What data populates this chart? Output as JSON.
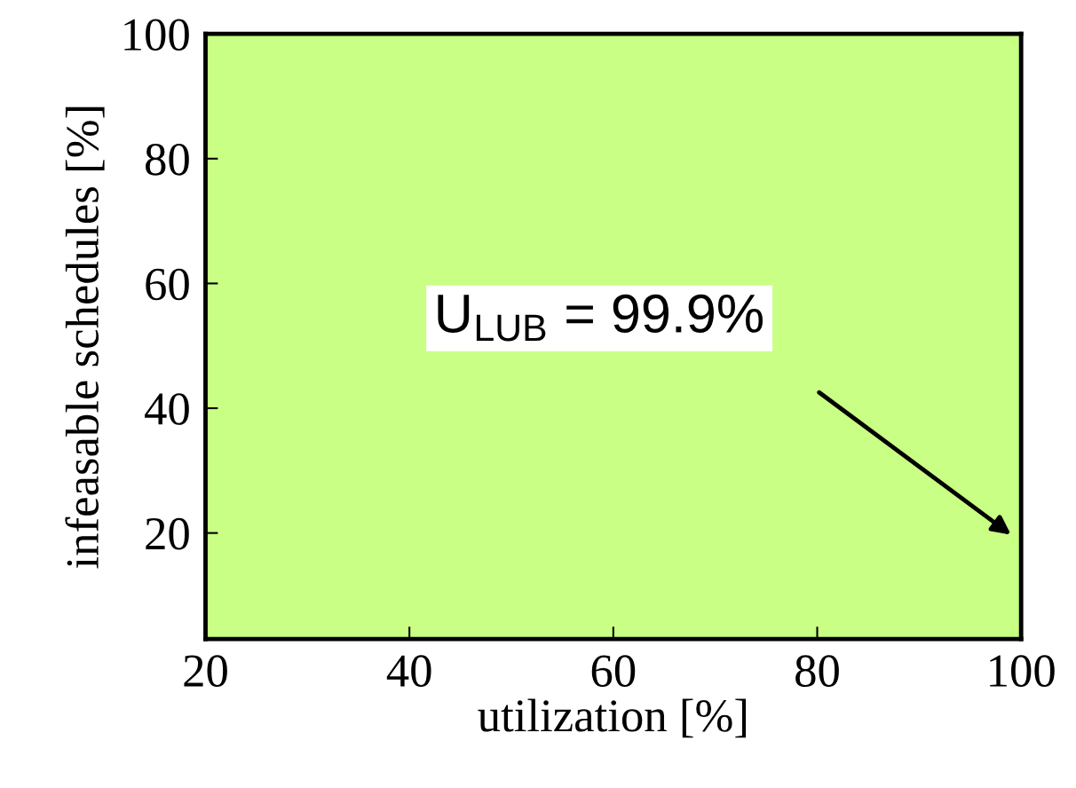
{
  "chart_data": {
    "type": "line",
    "xlabel": "utilization [%]",
    "ylabel": "infeasable schedules [%]",
    "xlim": [
      20,
      100
    ],
    "ylim": [
      3,
      100
    ],
    "xticks": [
      20,
      40,
      60,
      80,
      100
    ],
    "yticks": [
      20,
      40,
      60,
      80,
      100
    ],
    "grid": false,
    "bands": [
      {
        "axis": "x",
        "from": 20,
        "to": 100,
        "color": "#c8ff84"
      }
    ],
    "annotations": [
      "U$_{LUB}$ = 99.9%"
    ]
  }
}
